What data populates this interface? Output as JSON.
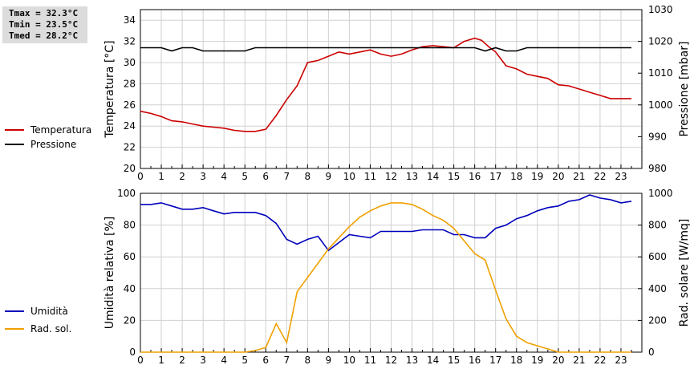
{
  "stats": {
    "tmax": "Tmax = 32.3°C",
    "tmin": "Tmin = 23.5°C",
    "tmed": "Tmed = 28.2°C"
  },
  "chart_data": [
    {
      "type": "line",
      "x_ticks": [
        "0",
        "1",
        "2",
        "3",
        "4",
        "5",
        "6",
        "7",
        "8",
        "9",
        "10",
        "11",
        "12",
        "13",
        "14",
        "15",
        "16",
        "17",
        "18",
        "19",
        "20",
        "21",
        "22",
        "23"
      ],
      "xlim": [
        0,
        24
      ],
      "ylabel": "Temperatura [°C]",
      "ylim": [
        20,
        35
      ],
      "y_ticks": [
        "20",
        "22",
        "24",
        "26",
        "28",
        "30",
        "32",
        "34"
      ],
      "y2label": "Pressione [mbar]",
      "y2lim": [
        980,
        1030
      ],
      "y2_ticks": [
        "980",
        "990",
        "1000",
        "1010",
        "1020",
        "1030"
      ],
      "grid": true,
      "legend_position": "left",
      "series": [
        {
          "name": "Temperatura",
          "axis": "left",
          "color": "#cc0000",
          "x": [
            0,
            0.5,
            1,
            1.5,
            2,
            2.5,
            3,
            3.5,
            4,
            4.5,
            5,
            5.5,
            6,
            6.5,
            7,
            7.5,
            8,
            8.5,
            9,
            9.5,
            10,
            10.5,
            11,
            11.5,
            12,
            12.5,
            13,
            13.5,
            14,
            14.5,
            15,
            15.5,
            16,
            16.33,
            16.67,
            17,
            17.5,
            18,
            18.5,
            19,
            19.5,
            20,
            20.5,
            21,
            21.5,
            22,
            22.5,
            23,
            23.5
          ],
          "values": [
            25.4,
            25.2,
            24.9,
            24.5,
            24.4,
            24.2,
            24.0,
            23.9,
            23.8,
            23.6,
            23.5,
            23.5,
            23.7,
            25.0,
            26.5,
            27.8,
            30.0,
            30.2,
            30.6,
            31.0,
            30.8,
            31.0,
            31.2,
            30.8,
            30.6,
            30.8,
            31.2,
            31.5,
            31.6,
            31.5,
            31.4,
            32.0,
            32.3,
            32.1,
            31.5,
            31.0,
            29.7,
            29.4,
            28.9,
            28.7,
            28.5,
            27.9,
            27.8,
            27.5,
            27.2,
            26.9,
            26.6,
            26.6,
            26.6
          ]
        },
        {
          "name": "Pressione",
          "axis": "right",
          "color": "#000000",
          "x": [
            0,
            1,
            1.5,
            2,
            2.5,
            3,
            3.5,
            4,
            4.5,
            5,
            5.5,
            6,
            6.5,
            7,
            8,
            9,
            10,
            11,
            12,
            13,
            14,
            15,
            16,
            16.5,
            17,
            17.5,
            18,
            18.5,
            19,
            20,
            21,
            22,
            23,
            23.5
          ],
          "values": [
            1018,
            1018,
            1017,
            1018,
            1018,
            1017,
            1017,
            1017,
            1017,
            1017,
            1018,
            1018,
            1018,
            1018,
            1018,
            1018,
            1018,
            1018,
            1018,
            1018,
            1018,
            1018,
            1018,
            1017,
            1018,
            1017,
            1017,
            1018,
            1018,
            1018,
            1018,
            1018,
            1018,
            1018
          ]
        }
      ]
    },
    {
      "type": "line",
      "x_ticks": [
        "0",
        "1",
        "2",
        "3",
        "4",
        "5",
        "6",
        "7",
        "8",
        "9",
        "10",
        "11",
        "12",
        "13",
        "14",
        "15",
        "16",
        "17",
        "18",
        "19",
        "20",
        "21",
        "22",
        "23"
      ],
      "xlim": [
        0,
        24
      ],
      "ylabel": "Umidità relativa [%]",
      "ylim": [
        0,
        100
      ],
      "y_ticks": [
        "0",
        "20",
        "40",
        "60",
        "80",
        "100"
      ],
      "y2label": "Rad. solare [W/mq]",
      "y2lim": [
        0,
        1000
      ],
      "y2_ticks": [
        "0",
        "200",
        "400",
        "600",
        "800",
        "1000"
      ],
      "grid": true,
      "legend_position": "left",
      "series": [
        {
          "name": "Umidità",
          "axis": "left",
          "color": "#0000bb",
          "x": [
            0,
            0.5,
            1,
            1.5,
            2,
            2.5,
            3,
            3.5,
            4,
            4.5,
            5,
            5.5,
            6,
            6.5,
            7,
            7.5,
            8,
            8.5,
            9,
            9.5,
            10,
            10.5,
            11,
            11.5,
            12,
            12.5,
            13,
            13.5,
            14,
            14.5,
            15,
            15.5,
            16,
            16.5,
            17,
            17.5,
            18,
            18.5,
            19,
            19.5,
            20,
            20.5,
            21,
            21.5,
            22,
            22.5,
            23,
            23.5
          ],
          "values": [
            93,
            93,
            94,
            92,
            90,
            90,
            91,
            89,
            87,
            88,
            88,
            88,
            86,
            81,
            71,
            68,
            71,
            73,
            64,
            69,
            74,
            73,
            72,
            76,
            76,
            76,
            76,
            77,
            77,
            77,
            74,
            74,
            72,
            72,
            78,
            80,
            84,
            86,
            89,
            91,
            92,
            95,
            96,
            99,
            97,
            96,
            94,
            95
          ]
        },
        {
          "name": "Rad. sol.",
          "axis": "right",
          "color": "#f0a000",
          "x": [
            0,
            1,
            2,
            3,
            4,
            5,
            5.5,
            6,
            6.5,
            7,
            7.5,
            8,
            8.5,
            9,
            9.5,
            10,
            10.5,
            11,
            11.5,
            12,
            12.5,
            13,
            13.5,
            14,
            14.5,
            15,
            15.5,
            16,
            16.5,
            17,
            17.5,
            18,
            18.5,
            19,
            19.5,
            20,
            21,
            22,
            23,
            23.5
          ],
          "values": [
            0,
            0,
            0,
            0,
            0,
            0,
            10,
            30,
            180,
            60,
            380,
            470,
            560,
            650,
            720,
            790,
            850,
            890,
            920,
            940,
            940,
            930,
            900,
            860,
            830,
            780,
            700,
            620,
            580,
            390,
            210,
            100,
            60,
            40,
            20,
            0,
            0,
            0,
            0,
            0
          ]
        }
      ]
    }
  ]
}
